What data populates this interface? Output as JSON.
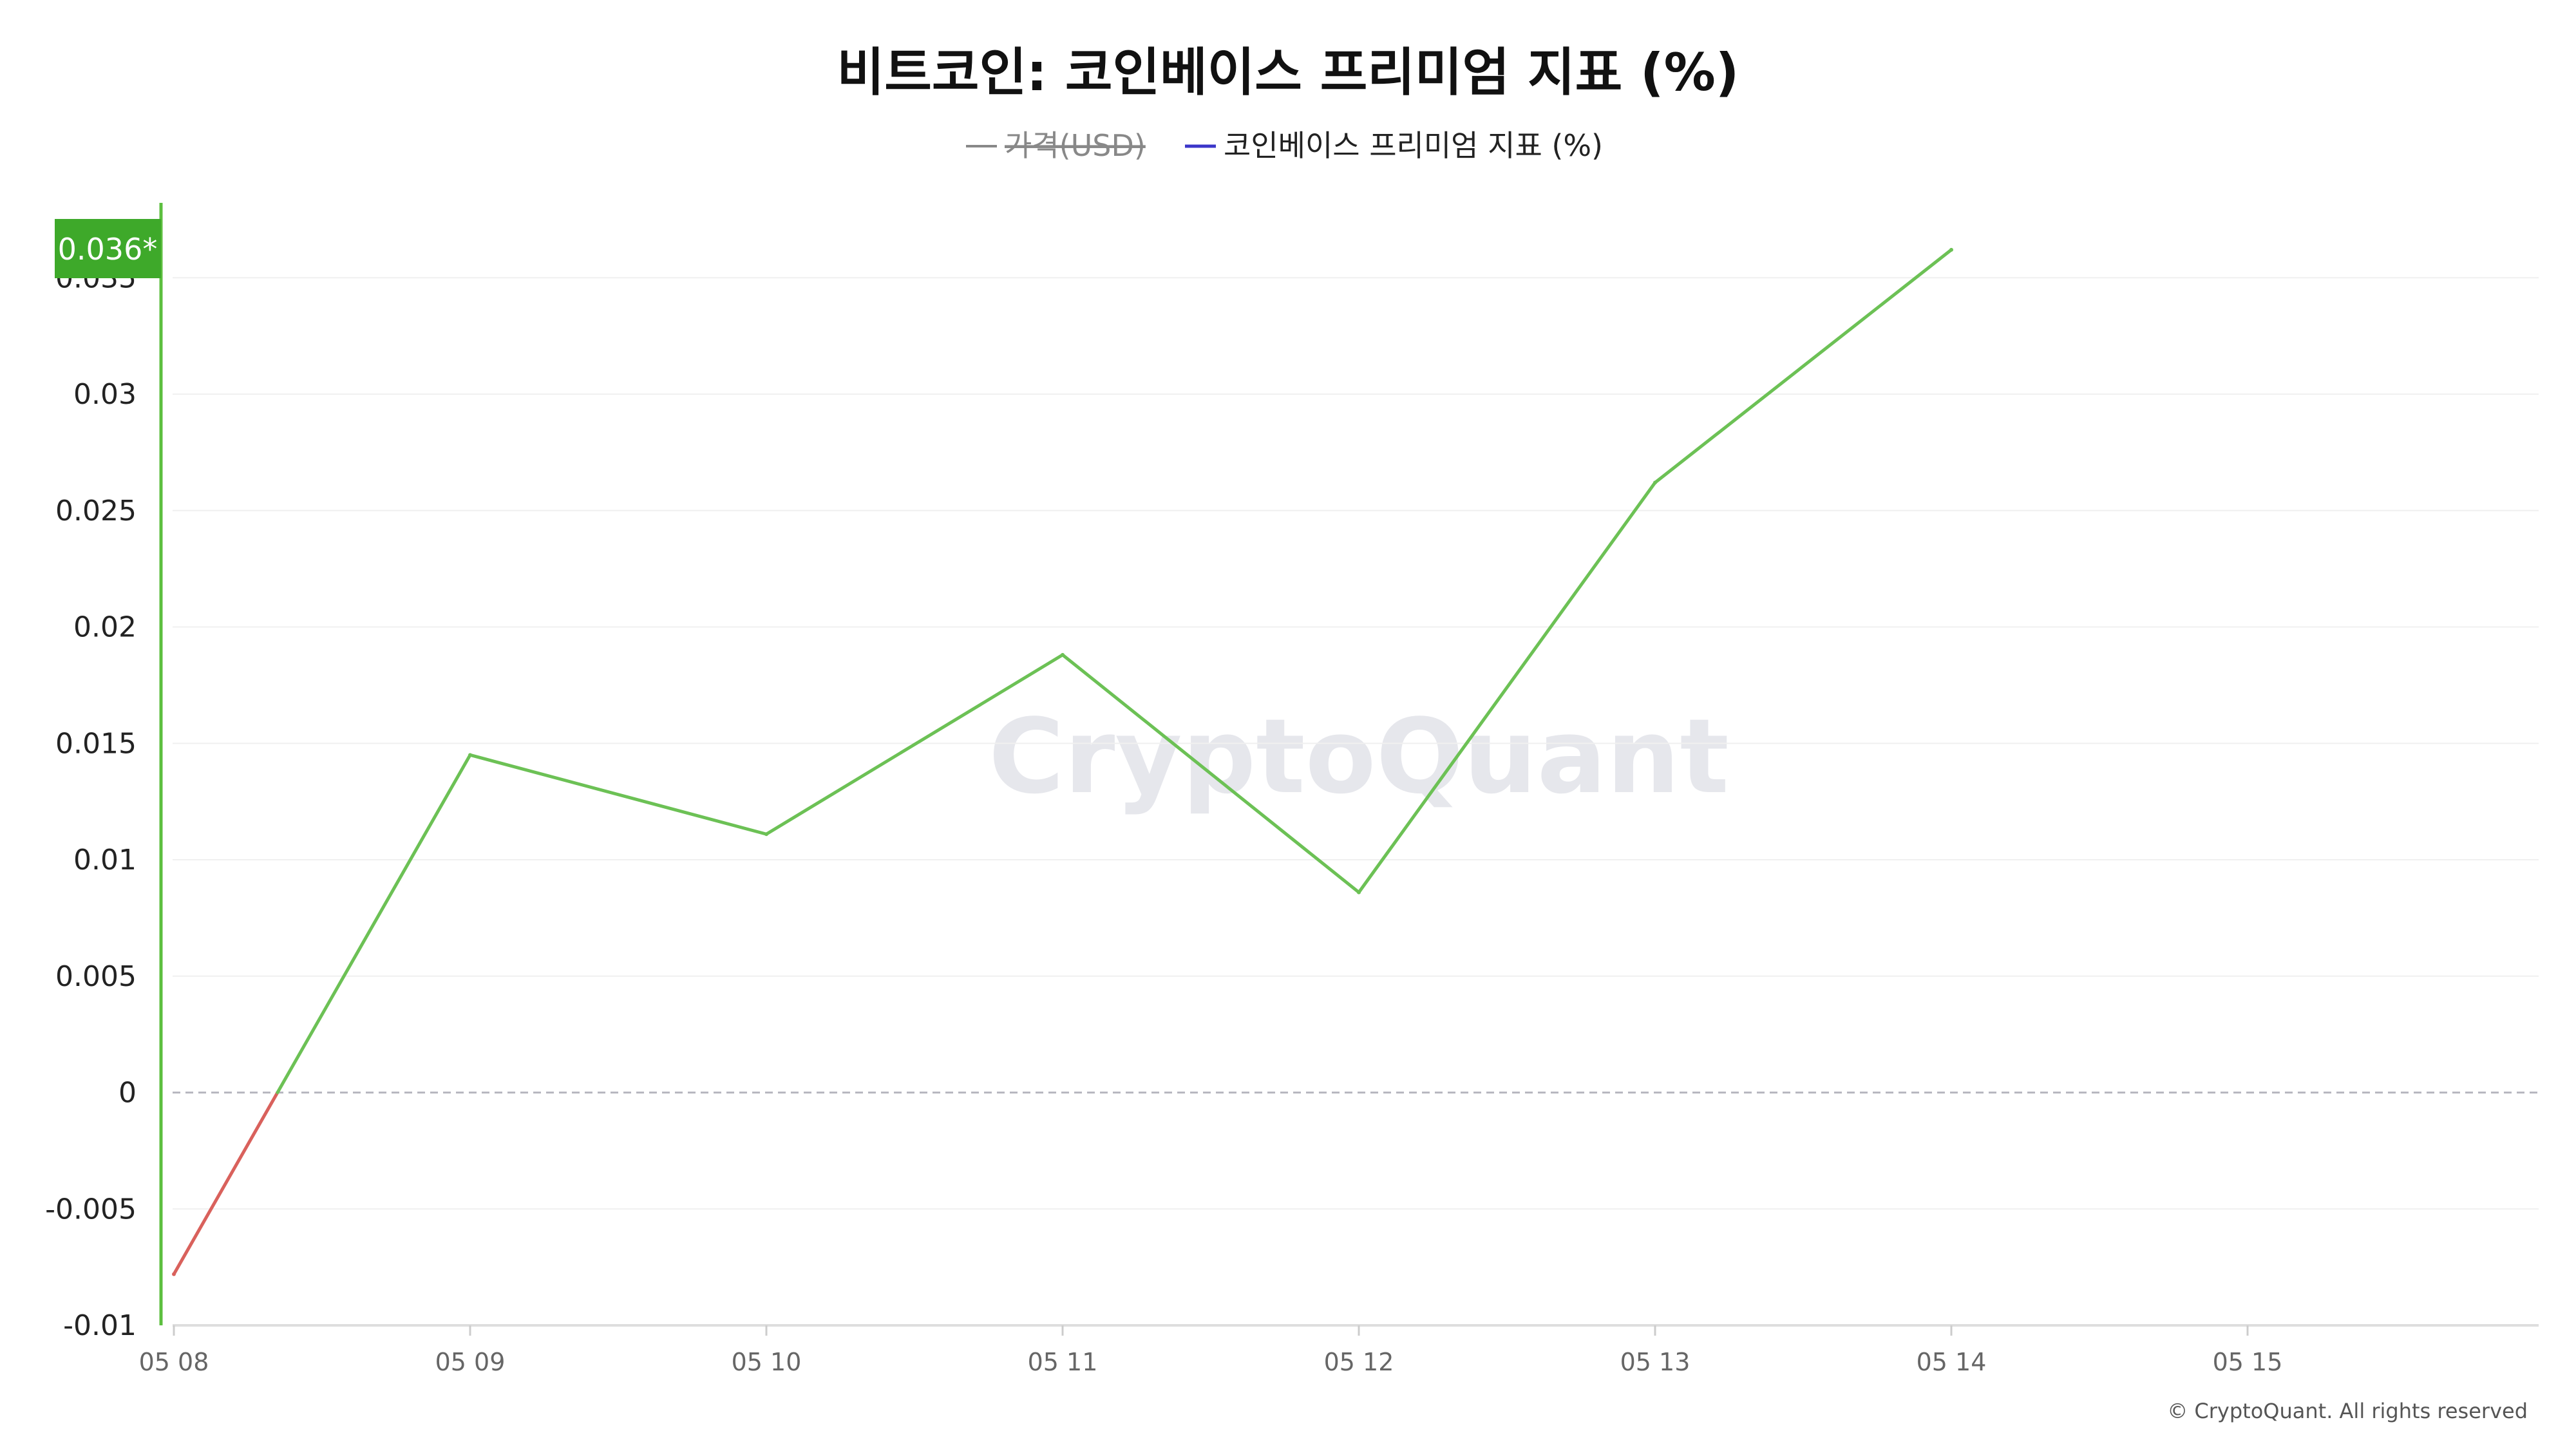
{
  "chart_data": {
    "type": "line",
    "title": "비트코인: 코인베이스 프리미엄 지표 (%)",
    "legend": [
      {
        "name": "가격(USD)",
        "color": "#888888",
        "hidden": true
      },
      {
        "name": "코인베이스 프리미엄 지표 (%)",
        "color": "#3b36c9",
        "hidden": false
      }
    ],
    "legend_position": "top-center",
    "x": [
      "05 08",
      "05 09",
      "05 10",
      "05 11",
      "05 12",
      "05 13",
      "05 14"
    ],
    "x_ticks": [
      "05 08",
      "05 09",
      "05 10",
      "05 11",
      "05 12",
      "05 13",
      "05 14",
      "05 15"
    ],
    "series": [
      {
        "name": "코인베이스 프리미엄 지표 (%)",
        "values": [
          -0.0078,
          0.0145,
          0.0111,
          0.0188,
          0.0086,
          0.0262,
          0.0362
        ],
        "positive_color": "#6cc155",
        "negative_color": "#d9615c"
      }
    ],
    "y_ticks": [
      "-0.01",
      "-0.005",
      "0",
      "0.005",
      "0.01",
      "0.015",
      "0.02",
      "0.025",
      "0.03",
      "0.035"
    ],
    "ylim": [
      -0.01,
      0.037
    ],
    "xlim": [
      "05 08",
      "05 16"
    ],
    "grid": true,
    "zero_line": "dashed",
    "current_value_label": "0.036*",
    "watermark": "CryptoQuant",
    "copyright": "© CryptoQuant. All rights reserved"
  }
}
